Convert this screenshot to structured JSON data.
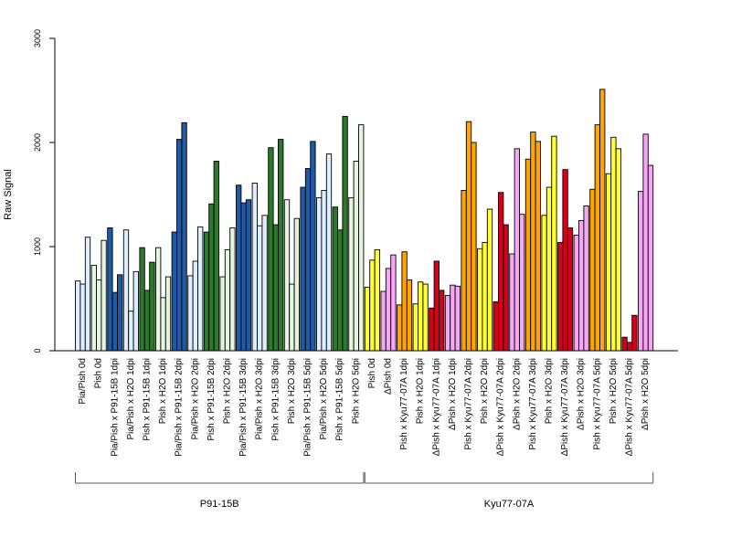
{
  "chart_data": {
    "type": "bar",
    "title": "",
    "xlabel": "",
    "ylabel": "Raw Signal",
    "ylim": [
      0,
      3000
    ],
    "yticks": [
      0,
      1000,
      2000,
      3000
    ],
    "bars_per_group": 3,
    "colors": {
      "light_blue": "#ddeeff",
      "dark_blue": "#1f5aa6",
      "light_green": "#e5f5e0",
      "dark_green": "#2b7a2b",
      "yellow": "#ffff33",
      "pink": "#f5a6f5",
      "orange": "#ffa500",
      "red": "#d7001b"
    },
    "categories": [
      {
        "label": "Pia/Pish 0d",
        "color": "light_blue",
        "values": [
          670,
          640,
          1090
        ]
      },
      {
        "label": "Pish 0d",
        "color": "light_green",
        "values": [
          820,
          680,
          1060
        ]
      },
      {
        "label": "Pia/Pish x P91-15B 1dpi",
        "color": "dark_blue",
        "values": [
          1180,
          560,
          730
        ]
      },
      {
        "label": "Pia/Pish x H2O 1dpi",
        "color": "light_blue",
        "values": [
          1160,
          380,
          760
        ]
      },
      {
        "label": "Pish x P91-15B 1dpi",
        "color": "dark_green",
        "values": [
          990,
          580,
          850
        ]
      },
      {
        "label": "Pish x H2O 1dpi",
        "color": "light_green",
        "values": [
          990,
          510,
          710
        ]
      },
      {
        "label": "Pia/Pish x P91-15B 2dpi",
        "color": "dark_blue",
        "values": [
          1140,
          2030,
          2190
        ]
      },
      {
        "label": "Pia/Pish x H2O 2dpi",
        "color": "light_blue",
        "values": [
          720,
          860,
          1190
        ]
      },
      {
        "label": "Pish x P91-15B 2dpi",
        "color": "dark_green",
        "values": [
          1140,
          1410,
          1820
        ]
      },
      {
        "label": "Pish x H2O 2dpi",
        "color": "light_green",
        "values": [
          710,
          970,
          1180
        ]
      },
      {
        "label": "Pia/Pish x P91-15B 3dpi",
        "color": "dark_blue",
        "values": [
          1590,
          1420,
          1450
        ]
      },
      {
        "label": "Pia/Pish x H2O 3dpi",
        "color": "light_blue",
        "values": [
          1610,
          1200,
          1300
        ]
      },
      {
        "label": "Pish x P91-15B 3dpi",
        "color": "dark_green",
        "values": [
          1950,
          1210,
          2030
        ]
      },
      {
        "label": "Pish x H2O 3dpi",
        "color": "light_green",
        "values": [
          1450,
          640,
          1270
        ]
      },
      {
        "label": "Pia/Pish x P91-15B 5dpi",
        "color": "dark_blue",
        "values": [
          1570,
          1750,
          2010
        ]
      },
      {
        "label": "Pia/Pish x H2O 5dpi",
        "color": "light_blue",
        "values": [
          1470,
          1540,
          1890
        ]
      },
      {
        "label": "Pish x P91-15B 5dpi",
        "color": "dark_green",
        "values": [
          1380,
          1160,
          2250
        ]
      },
      {
        "label": "Pish x H2O 5dpi",
        "color": "light_green",
        "values": [
          1470,
          1820,
          2170
        ]
      },
      {
        "label": "Pish 0d",
        "color": "yellow",
        "values": [
          610,
          870,
          970
        ]
      },
      {
        "label": "ΔPish 0d",
        "color": "pink",
        "values": [
          570,
          790,
          920
        ]
      },
      {
        "label": "Pish x Kyu77-07A 1dpi",
        "color": "orange",
        "values": [
          440,
          950,
          680
        ]
      },
      {
        "label": "Pish x H2O 1dpi",
        "color": "yellow",
        "values": [
          450,
          660,
          640
        ]
      },
      {
        "label": "ΔPish x Kyu77-07A 1dpi",
        "color": "red",
        "values": [
          410,
          860,
          580
        ]
      },
      {
        "label": "ΔPish x H2O 1dpi",
        "color": "pink",
        "values": [
          530,
          630,
          620
        ]
      },
      {
        "label": "Pish x Kyu77-07A 2dpi",
        "color": "orange",
        "values": [
          1540,
          2200,
          2000
        ]
      },
      {
        "label": "Pish x H2O 2dpi",
        "color": "yellow",
        "values": [
          980,
          1040,
          1360
        ]
      },
      {
        "label": "ΔPish x Kyu77-07A 2dpi",
        "color": "red",
        "values": [
          470,
          1520,
          1210
        ]
      },
      {
        "label": "ΔPish x H2O 2dpi",
        "color": "pink",
        "values": [
          930,
          1940,
          1310
        ]
      },
      {
        "label": "Pish x Kyu77-07A 3dpi",
        "color": "orange",
        "values": [
          1840,
          2100,
          2010
        ]
      },
      {
        "label": "Pish x H2O 3dpi",
        "color": "yellow",
        "values": [
          1300,
          1570,
          2060
        ]
      },
      {
        "label": "ΔPish x Kyu77-07A 3dpi",
        "color": "red",
        "values": [
          1040,
          1740,
          1180
        ]
      },
      {
        "label": "ΔPish x H2O 3dpi",
        "color": "pink",
        "values": [
          1110,
          1250,
          1390
        ]
      },
      {
        "label": "Pish x Kyu77-07A 5dpi",
        "color": "orange",
        "values": [
          1550,
          2170,
          2510
        ]
      },
      {
        "label": "Pish x H2O 5dpi",
        "color": "yellow",
        "values": [
          1700,
          2050,
          1940
        ]
      },
      {
        "label": "ΔPish x Kyu77-07A 5dpi",
        "color": "red",
        "values": [
          130,
          80,
          340
        ]
      },
      {
        "label": "ΔPish x H2O 5dpi",
        "color": "pink",
        "values": [
          1530,
          2080,
          1780
        ]
      }
    ],
    "groups": [
      {
        "label": "P91-15B",
        "first": 0,
        "last": 17
      },
      {
        "label": "Kyu77-07A",
        "first": 18,
        "last": 35
      }
    ],
    "grid": false,
    "legend": "none"
  }
}
